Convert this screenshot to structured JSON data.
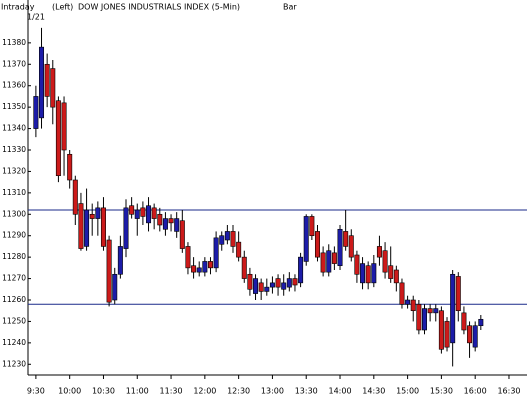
{
  "chart_data": {
    "type": "candlestick",
    "header": [
      "Intraday",
      "(Left)",
      "DOW JONES INDUSTRIALS INDEX  (5-Min)",
      "Bar"
    ],
    "date_label": "1/21",
    "x": [
      570,
      575,
      580,
      585,
      590,
      595,
      600,
      605,
      610,
      615,
      620,
      625,
      630,
      635,
      640,
      645,
      650,
      655,
      660,
      665,
      670,
      675,
      680,
      685,
      690,
      695,
      700,
      705,
      710,
      715,
      720,
      725,
      730,
      735,
      740,
      745,
      750,
      755,
      760,
      765,
      770,
      775,
      780,
      785,
      790,
      795,
      800,
      805,
      810,
      815,
      820,
      825,
      830,
      835,
      840,
      845,
      850,
      855,
      860,
      865,
      870,
      875,
      880,
      885,
      890,
      895,
      900,
      905,
      910,
      915,
      920,
      925,
      930,
      935,
      940,
      945,
      950,
      955,
      960,
      965
    ],
    "open": [
      11340,
      11345,
      11370,
      11368,
      11353,
      11352,
      11328,
      11316,
      11305,
      11285,
      11300,
      11298,
      11303,
      11288,
      11260,
      11272,
      11284,
      11304,
      11298,
      11303,
      11296,
      11303,
      11300,
      11293,
      11298,
      11292,
      11297,
      11285,
      11276,
      11273,
      11273,
      11278,
      11275,
      11286,
      11288,
      11292,
      11287,
      11280,
      11272,
      11263,
      11268,
      11264,
      11266,
      11270,
      11265,
      11266,
      11270,
      11268,
      11278,
      11299,
      11292,
      11282,
      11273,
      11282,
      11276,
      11292,
      11290,
      11281,
      11268,
      11276,
      11268,
      11285,
      11283,
      11276,
      11274,
      11268,
      11258,
      11260,
      11258,
      11246,
      11256,
      11254,
      11255,
      11250,
      11240,
      11271,
      11254,
      11248,
      11238,
      11248
    ],
    "high": [
      11360,
      11387,
      11375,
      11372,
      11355,
      11355,
      11330,
      11318,
      11310,
      11312,
      11305,
      11306,
      11308,
      11290,
      11275,
      11290,
      11307,
      11308,
      11305,
      11306,
      11308,
      11305,
      11303,
      11301,
      11300,
      11301,
      11302,
      11287,
      11280,
      11278,
      11280,
      11280,
      11292,
      11292,
      11295,
      11295,
      11292,
      11283,
      11275,
      11272,
      11270,
      11270,
      11271,
      11272,
      11272,
      11273,
      11272,
      11282,
      11300,
      11300,
      11295,
      11285,
      11286,
      11285,
      11295,
      11302,
      11293,
      11283,
      11280,
      11278,
      11281,
      11290,
      11287,
      11285,
      11276,
      11270,
      11262,
      11262,
      11260,
      11258,
      11258,
      11258,
      11257,
      11252,
      11274,
      11273,
      11257,
      11250,
      11250,
      11253
    ],
    "low": [
      11336,
      11340,
      11350,
      11342,
      11315,
      11318,
      11312,
      11295,
      11283,
      11283,
      11290,
      11290,
      11283,
      11257,
      11258,
      11270,
      11280,
      11298,
      11290,
      11295,
      11292,
      11293,
      11292,
      11290,
      11292,
      11289,
      11282,
      11272,
      11270,
      11271,
      11271,
      11272,
      11273,
      11283,
      11286,
      11282,
      11278,
      11268,
      11262,
      11260,
      11260,
      11262,
      11263,
      11262,
      11262,
      11264,
      11264,
      11266,
      11276,
      11288,
      11278,
      11271,
      11271,
      11274,
      11274,
      11283,
      11278,
      11268,
      11265,
      11265,
      11266,
      11276,
      11270,
      11268,
      11264,
      11256,
      11256,
      11250,
      11244,
      11244,
      11250,
      11250,
      11235,
      11236,
      11229,
      11250,
      11244,
      11233,
      11236,
      11246
    ],
    "close": [
      11355,
      11378,
      11355,
      11350,
      11318,
      11330,
      11316,
      11300,
      11284,
      11302,
      11298,
      11303,
      11285,
      11259,
      11272,
      11285,
      11303,
      11300,
      11302,
      11299,
      11304,
      11298,
      11295,
      11298,
      11296,
      11298,
      11284,
      11275,
      11273,
      11275,
      11278,
      11275,
      11289,
      11290,
      11292,
      11285,
      11280,
      11270,
      11265,
      11270,
      11264,
      11266,
      11268,
      11266,
      11268,
      11270,
      11267,
      11280,
      11299,
      11290,
      11280,
      11273,
      11283,
      11277,
      11293,
      11285,
      11280,
      11272,
      11277,
      11268,
      11277,
      11280,
      11273,
      11270,
      11268,
      11258,
      11260,
      11255,
      11246,
      11256,
      11254,
      11256,
      11237,
      11238,
      11272,
      11255,
      11246,
      11240,
      11248,
      11251
    ],
    "up_color": "#1c1ca8",
    "down_color": "#cc1a1a",
    "hlines": [
      11302,
      11258
    ],
    "hline_color": "#1a2a8a",
    "xlim": [
      563,
      1006
    ],
    "ylim": [
      11225,
      11400
    ],
    "xticks": [
      {
        "value": 570,
        "label": "9:30"
      },
      {
        "value": 600,
        "label": "10:00"
      },
      {
        "value": 630,
        "label": "10:30"
      },
      {
        "value": 660,
        "label": "11:00"
      },
      {
        "value": 690,
        "label": "11:30"
      },
      {
        "value": 720,
        "label": "12:00"
      },
      {
        "value": 750,
        "label": "12:30"
      },
      {
        "value": 780,
        "label": "13:00"
      },
      {
        "value": 810,
        "label": "13:30"
      },
      {
        "value": 840,
        "label": "14:00"
      },
      {
        "value": 870,
        "label": "14:30"
      },
      {
        "value": 900,
        "label": "15:00"
      },
      {
        "value": 930,
        "label": "15:30"
      },
      {
        "value": 960,
        "label": "16:00"
      },
      {
        "value": 990,
        "label": "16:30"
      }
    ],
    "yticks": [
      11230,
      11240,
      11250,
      11260,
      11270,
      11280,
      11290,
      11300,
      11310,
      11320,
      11330,
      11340,
      11350,
      11360,
      11370,
      11380
    ]
  }
}
